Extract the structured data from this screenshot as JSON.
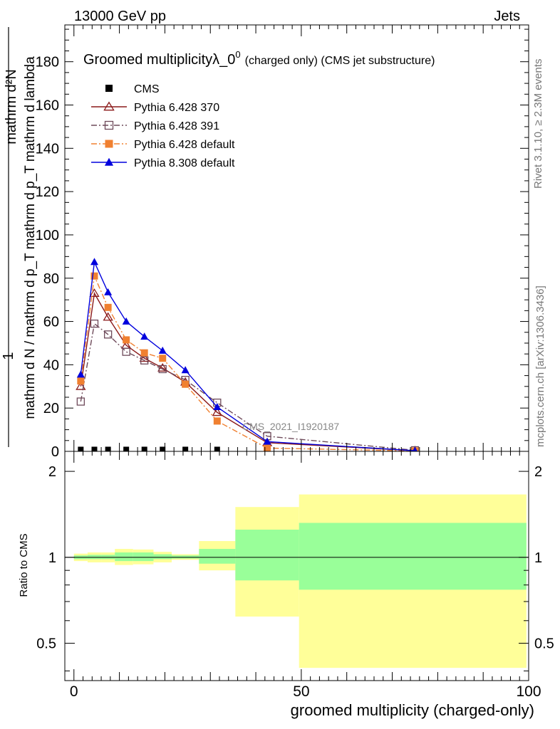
{
  "header": {
    "left_label": "13000 GeV pp",
    "right_label": "Jets"
  },
  "side_labels": {
    "rivet": "Rivet 3.1.10, ≥ 2.3M events",
    "mcplots": "mcplots.cern.ch [arXiv:1306.3436]"
  },
  "colors": {
    "cms": "#000000",
    "py6_370": "#8b1a1a",
    "py6_391": "#6e4a5a",
    "py6_default": "#f08030",
    "py8_default": "#0000dd",
    "band_outer": "#ffff99",
    "band_inner": "#99ff99"
  },
  "chart_data": [
    {
      "type": "line",
      "title_main": "Groomed multiplicityλ_0",
      "title_sup": "0",
      "title_tail": "(charged only) (CMS jet substructure)",
      "ylabel_numer": "mathrm d²N",
      "ylabel_denom": "mathrm d N / mathrm d p_T mathrm d p_T mathrm d lambda",
      "ylabel_one": "1",
      "analysis_label": "CMS_2021_I1920187",
      "xlim": [
        -2,
        100
      ],
      "ylim": [
        0,
        197
      ],
      "yticks": [
        0,
        20,
        40,
        60,
        80,
        100,
        120,
        140,
        160,
        180
      ],
      "series": [
        {
          "name": "CMS",
          "key": "cms",
          "marker": "square-filled",
          "line": "none",
          "x": [
            1.5,
            4.5,
            7.5,
            11.5,
            15.5,
            19.5,
            24.5,
            31.5
          ],
          "y": [
            0.5,
            0.5,
            0.5,
            0.5,
            0.5,
            0.5,
            0.5,
            0.5
          ]
        },
        {
          "name": "Pythia 6.428 370",
          "key": "py6_370",
          "marker": "triangle-open",
          "line": "solid",
          "x": [
            1.5,
            4.5,
            7.5,
            11.5,
            15.5,
            19.5,
            24.5,
            31.5,
            42.5,
            75
          ],
          "y": [
            30,
            73,
            62,
            49,
            43,
            38.5,
            32,
            18,
            4,
            0.3
          ]
        },
        {
          "name": "Pythia 6.428 391",
          "key": "py6_391",
          "marker": "square-open",
          "line": "dashdot",
          "x": [
            1.5,
            4.5,
            7.5,
            11.5,
            15.5,
            19.5,
            24.5,
            31.5,
            42.5,
            75
          ],
          "y": [
            23,
            59,
            54,
            46,
            42,
            38,
            33,
            22.5,
            7,
            0.5
          ]
        },
        {
          "name": "Pythia 6.428 default",
          "key": "py6_default",
          "marker": "square-filled",
          "line": "dashdot",
          "x": [
            1.5,
            4.5,
            7.5,
            11.5,
            15.5,
            19.5,
            24.5,
            31.5,
            42.5,
            75
          ],
          "y": [
            32.5,
            81,
            66.5,
            51.5,
            45.5,
            43,
            31,
            14,
            1.5,
            0.2
          ]
        },
        {
          "name": "Pythia 8.308 default",
          "key": "py8_default",
          "marker": "triangle-filled",
          "line": "solid",
          "x": [
            1.5,
            4.5,
            7.5,
            11.5,
            15.5,
            19.5,
            24.5,
            31.5,
            42.5,
            75
          ],
          "y": [
            35.5,
            87.5,
            73.5,
            60,
            53,
            46.5,
            37.5,
            20.5,
            4.5,
            0.3
          ]
        }
      ]
    },
    {
      "type": "area",
      "ylabel": "Ratio to CMS",
      "xlabel": "groomed multiplicity (charged-only)",
      "xlim": [
        -2,
        100
      ],
      "xticks": [
        0,
        50,
        100
      ],
      "ylim": [
        0.37,
        2.35
      ],
      "yticks": [
        0.5,
        1,
        2
      ],
      "ytick_labels": [
        "0.5",
        "1",
        "2"
      ],
      "reference": 1,
      "bins": [
        {
          "x0": 0,
          "x1": 3,
          "inner": [
            0.985,
            1.015
          ],
          "outer": [
            0.97,
            1.03
          ]
        },
        {
          "x0": 3,
          "x1": 6,
          "inner": [
            0.985,
            1.02
          ],
          "outer": [
            0.96,
            1.04
          ]
        },
        {
          "x0": 6,
          "x1": 9,
          "inner": [
            0.985,
            1.02
          ],
          "outer": [
            0.96,
            1.04
          ]
        },
        {
          "x0": 9,
          "x1": 13,
          "inner": [
            0.97,
            1.04
          ],
          "outer": [
            0.94,
            1.07
          ]
        },
        {
          "x0": 13,
          "x1": 17.5,
          "inner": [
            0.97,
            1.04
          ],
          "outer": [
            0.945,
            1.065
          ]
        },
        {
          "x0": 17.5,
          "x1": 21.5,
          "inner": [
            0.985,
            1.025
          ],
          "outer": [
            0.96,
            1.045
          ]
        },
        {
          "x0": 21.5,
          "x1": 27.5,
          "inner": [
            0.99,
            1.015
          ],
          "outer": [
            0.98,
            1.025
          ]
        },
        {
          "x0": 27.5,
          "x1": 35.5,
          "inner": [
            0.95,
            1.07
          ],
          "outer": [
            0.9,
            1.14
          ]
        },
        {
          "x0": 35.5,
          "x1": 49.5,
          "inner": [
            0.83,
            1.25
          ],
          "outer": [
            0.62,
            1.5
          ]
        },
        {
          "x0": 49.5,
          "x1": 99.5,
          "inner": [
            0.77,
            1.32
          ],
          "outer": [
            0.41,
            1.66
          ]
        }
      ]
    }
  ]
}
